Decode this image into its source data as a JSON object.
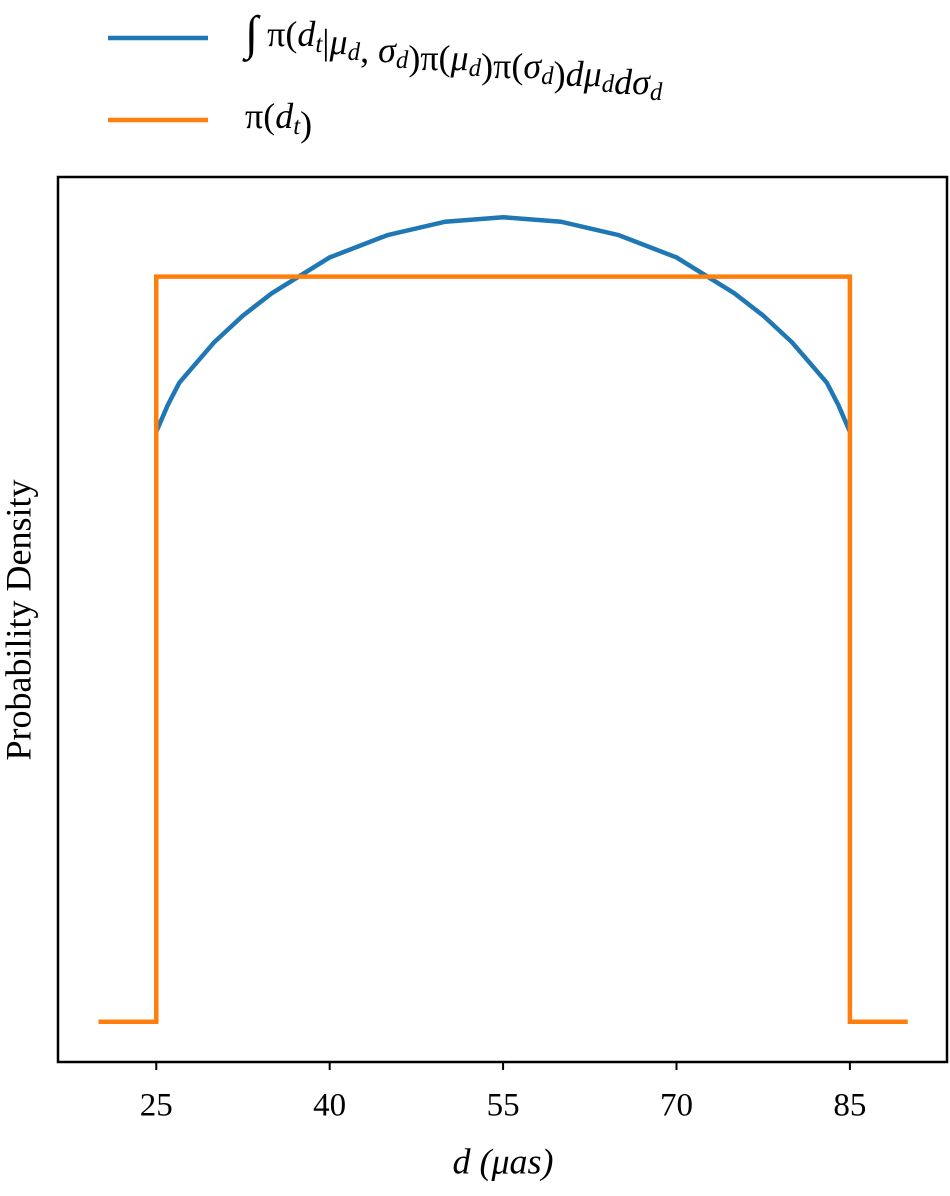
{
  "chart_data": {
    "type": "line",
    "x_label": "d (μas)",
    "y_label": "Probability Density",
    "xlim": [
      16.5,
      93.4
    ],
    "ylim": [
      -0.0009,
      0.0189
    ],
    "xticks": [
      25,
      40,
      55,
      70,
      85
    ],
    "legend": "top-outside",
    "series": [
      {
        "name": "∫ π(d_t|μ_d, σ_d)π(μ_d)π(σ_d)dμ_ddσ_d",
        "color": "#1f77b4",
        "x": [
          25,
          26,
          27,
          28,
          30,
          32.5,
          35,
          37.5,
          40,
          45,
          50,
          55,
          60,
          65,
          70,
          72.5,
          75,
          77.5,
          80,
          82,
          83,
          84,
          85
        ],
        "values": [
          0.0132,
          0.0138,
          0.0143,
          0.0146,
          0.0152,
          0.0158,
          0.0163,
          0.0167,
          0.0171,
          0.0176,
          0.0179,
          0.018,
          0.0179,
          0.0176,
          0.0171,
          0.0167,
          0.0163,
          0.0158,
          0.0152,
          0.0146,
          0.0143,
          0.0138,
          0.0132
        ]
      },
      {
        "name": "π(d_t)",
        "color": "#ff7f0e",
        "x": [
          20,
          25,
          25,
          85,
          85,
          90
        ],
        "values": [
          0,
          0,
          0.01667,
          0.01667,
          0,
          0
        ]
      }
    ]
  }
}
